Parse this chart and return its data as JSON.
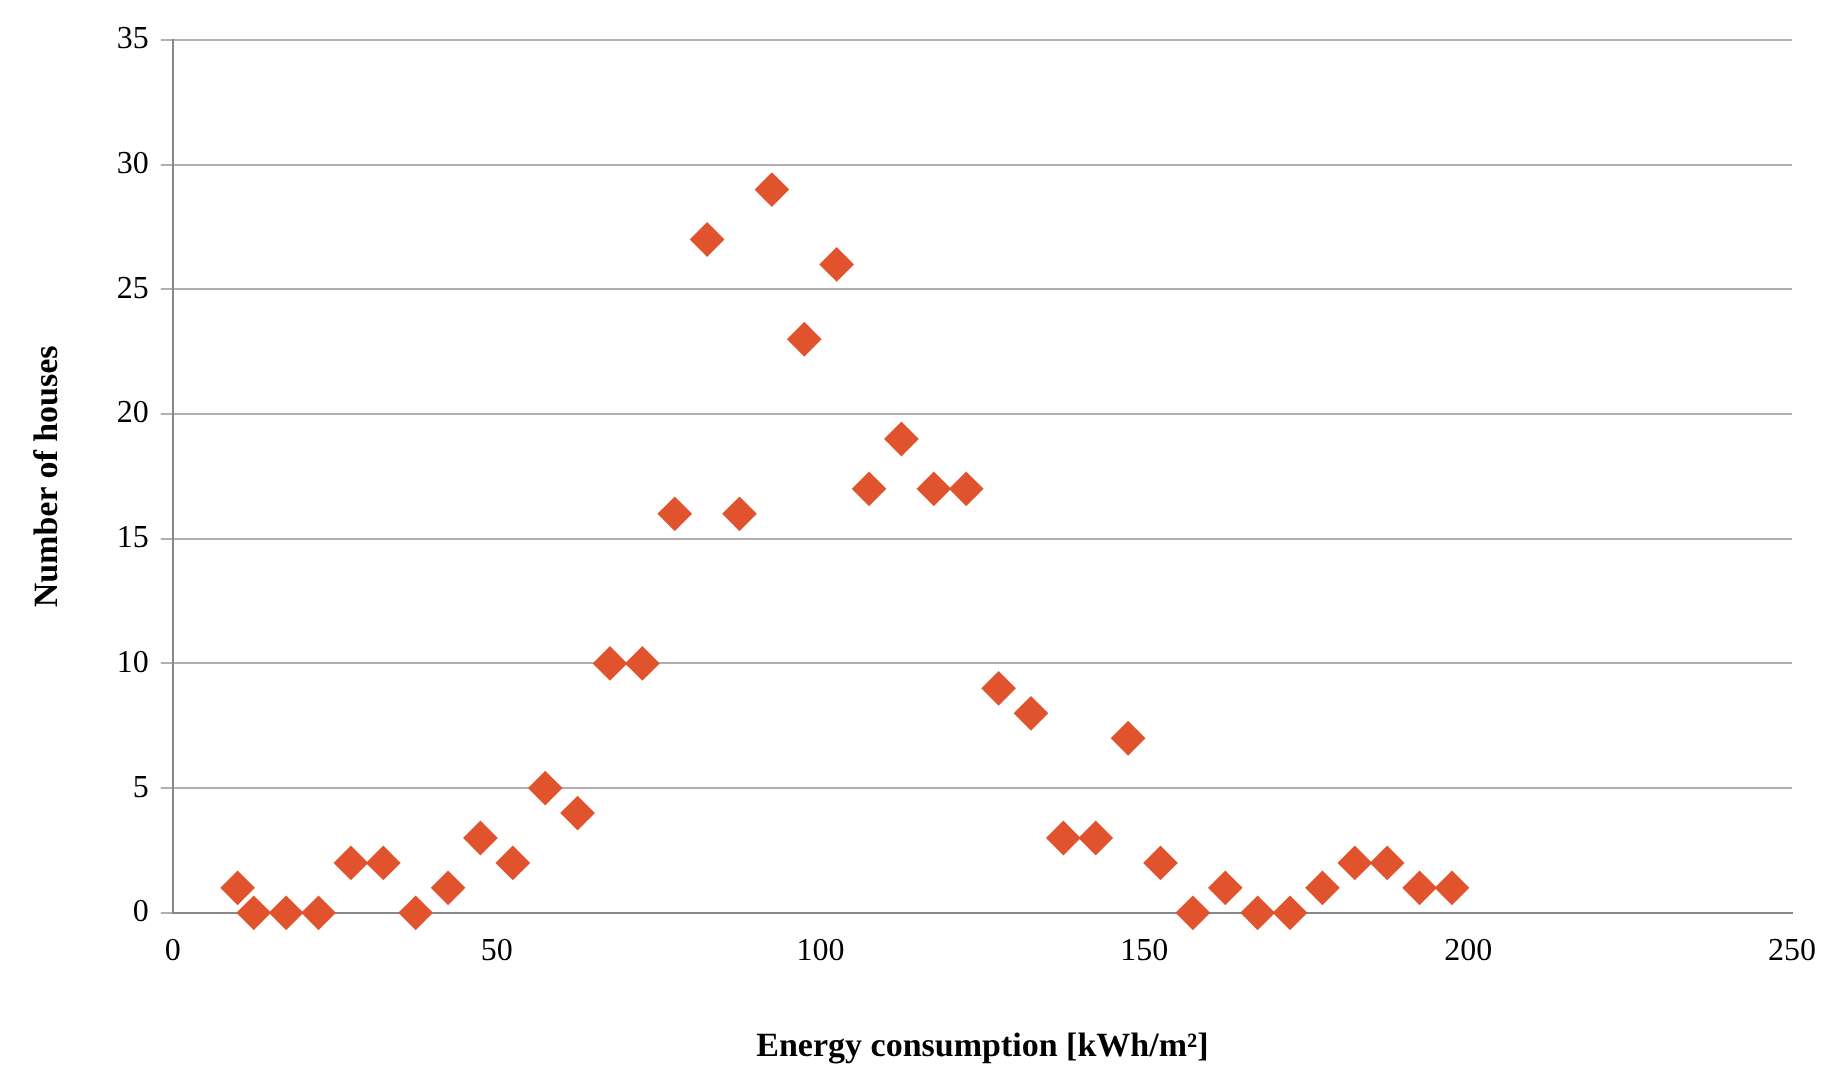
{
  "chart_data": {
    "type": "scatter",
    "xlabel": "Energy consumption [kWh/m²]",
    "ylabel": "Number of houses",
    "x": [
      10,
      12.5,
      17.5,
      22.5,
      27.5,
      32.5,
      37.5,
      42.5,
      47.5,
      52.5,
      57.5,
      62.5,
      67.5,
      72.5,
      77.5,
      82.5,
      87.5,
      92.5,
      97.5,
      102.5,
      107.5,
      112.5,
      117.5,
      122.5,
      127.5,
      132.5,
      137.5,
      142.5,
      147.5,
      152.5,
      157.5,
      162.5,
      167.5,
      172.5,
      177.5,
      182.5,
      187.5,
      192.5,
      197.5
    ],
    "series": [
      {
        "color": "#e0532c",
        "values": [
          1,
          0,
          0,
          0,
          2,
          2,
          0,
          1,
          3,
          2,
          5,
          4,
          10,
          10,
          16,
          27,
          16,
          29,
          23,
          26,
          17,
          19,
          17,
          17,
          9,
          8,
          3,
          3,
          7,
          2,
          0,
          1,
          0,
          0,
          1,
          2,
          2,
          1,
          1
        ]
      }
    ],
    "xlim": [
      0,
      250
    ],
    "xticks": [
      0,
      50,
      100,
      150,
      200,
      250
    ],
    "ylim": [
      0,
      35
    ],
    "yticks": [
      0,
      5,
      10,
      15,
      20,
      25,
      30,
      35
    ],
    "grid": "y",
    "marker": "diamond",
    "legend": false
  }
}
